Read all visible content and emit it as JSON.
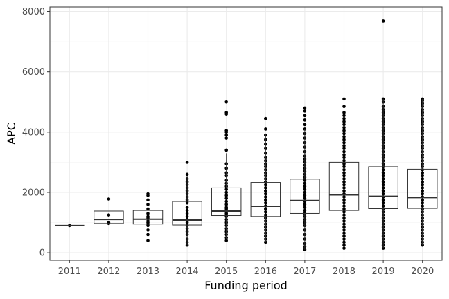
{
  "chart_data": {
    "type": "box",
    "xlabel": "Funding period",
    "ylabel": "APC",
    "categories": [
      "2011",
      "2012",
      "2013",
      "2014",
      "2015",
      "2016",
      "2017",
      "2018",
      "2019",
      "2020"
    ],
    "yticks": [
      0,
      2000,
      4000,
      6000,
      8000
    ],
    "ytick_labels": [
      "0",
      "2000",
      "4000",
      "6000",
      "8000"
    ],
    "ylim": [
      -250,
      8150
    ],
    "grid": true,
    "boxes": [
      {
        "category": "2011",
        "q1": 900,
        "median": 900,
        "q3": 900,
        "whisker_low": 900,
        "whisker_high": 900
      },
      {
        "category": "2012",
        "q1": 970,
        "median": 1100,
        "q3": 1380,
        "whisker_low": 970,
        "whisker_high": 1380
      },
      {
        "category": "2013",
        "q1": 950,
        "median": 1110,
        "q3": 1400,
        "whisker_low": 600,
        "whisker_high": 1950
      },
      {
        "category": "2014",
        "q1": 920,
        "median": 1080,
        "q3": 1700,
        "whisker_low": 250,
        "whisker_high": 2550
      },
      {
        "category": "2015",
        "q1": 1230,
        "median": 1380,
        "q3": 2150,
        "whisker_low": 450,
        "whisker_high": 3300
      },
      {
        "category": "2016",
        "q1": 1200,
        "median": 1540,
        "q3": 2330,
        "whisker_low": 350,
        "whisker_high": 3950
      },
      {
        "category": "2017",
        "q1": 1300,
        "median": 1730,
        "q3": 2440,
        "whisker_low": 100,
        "whisker_high": 4100
      },
      {
        "category": "2018",
        "q1": 1400,
        "median": 1920,
        "q3": 3000,
        "whisker_low": 150,
        "whisker_high": 5100
      },
      {
        "category": "2019",
        "q1": 1460,
        "median": 1870,
        "q3": 2850,
        "whisker_low": 150,
        "whisker_high": 5100
      },
      {
        "category": "2020",
        "q1": 1470,
        "median": 1830,
        "q3": 2770,
        "whisker_low": 250,
        "whisker_high": 5100
      }
    ],
    "points": [
      {
        "category": "2011",
        "y": [
          900
        ]
      },
      {
        "category": "2012",
        "y": [
          970,
          1000,
          1250,
          1780
        ]
      },
      {
        "category": "2013",
        "y": [
          400,
          600,
          750,
          900,
          950,
          1000,
          1050,
          1150,
          1200,
          1300,
          1450,
          1600,
          1750,
          1900,
          1950
        ]
      },
      {
        "category": "2014",
        "y": [
          250,
          350,
          450,
          600,
          700,
          800,
          900,
          1000,
          1050,
          1100,
          1200,
          1300,
          1400,
          1500,
          1650,
          1750,
          1850,
          1950,
          2050,
          2150,
          2250,
          2350,
          2450,
          2600,
          3000
        ]
      },
      {
        "category": "2015",
        "y": [
          400,
          500,
          600,
          700,
          800,
          900,
          1000,
          1100,
          1200,
          1250,
          1300,
          1350,
          1400,
          1450,
          1500,
          1600,
          1700,
          1800,
          1900,
          2000,
          2100,
          2200,
          2300,
          2400,
          2550,
          2650,
          2800,
          2950,
          3400,
          3800,
          3900,
          4000,
          4050,
          4600,
          4650,
          5000
        ]
      },
      {
        "category": "2016",
        "y": [
          350,
          450,
          550,
          650,
          750,
          850,
          950,
          1050,
          1150,
          1250,
          1350,
          1450,
          1550,
          1650,
          1750,
          1850,
          1950,
          2050,
          2150,
          2250,
          2350,
          2450,
          2550,
          2650,
          2750,
          2850,
          2950,
          3050,
          3150,
          3300,
          3450,
          3600,
          3750,
          3900,
          4100,
          4450
        ]
      },
      {
        "category": "2017",
        "y": [
          100,
          200,
          300,
          450,
          600,
          750,
          900,
          1000,
          1100,
          1200,
          1300,
          1400,
          1500,
          1600,
          1700,
          1800,
          1900,
          2000,
          2100,
          2200,
          2300,
          2400,
          2500,
          2600,
          2700,
          2800,
          2900,
          3000,
          3100,
          3200,
          3350,
          3500,
          3650,
          3800,
          3950,
          4100,
          4250,
          4400,
          4550,
          4700,
          4800
        ]
      },
      {
        "category": "2018",
        "y": [
          150,
          250,
          350,
          450,
          550,
          650,
          750,
          850,
          950,
          1050,
          1150,
          1250,
          1350,
          1450,
          1550,
          1650,
          1750,
          1850,
          1950,
          2050,
          2150,
          2250,
          2350,
          2450,
          2550,
          2650,
          2750,
          2850,
          2950,
          3050,
          3150,
          3250,
          3350,
          3450,
          3550,
          3650,
          3750,
          3850,
          3950,
          4050,
          4150,
          4250,
          4350,
          4450,
          4550,
          4650,
          4850,
          5100
        ]
      },
      {
        "category": "2019",
        "y": [
          150,
          250,
          350,
          450,
          550,
          650,
          750,
          850,
          950,
          1050,
          1150,
          1250,
          1350,
          1450,
          1550,
          1650,
          1750,
          1850,
          1950,
          2050,
          2150,
          2250,
          2350,
          2450,
          2550,
          2650,
          2750,
          2850,
          2950,
          3050,
          3150,
          3250,
          3350,
          3450,
          3550,
          3650,
          3750,
          3850,
          3950,
          4050,
          4150,
          4250,
          4350,
          4450,
          4550,
          4650,
          4750,
          4850,
          5000,
          5100,
          7680
        ]
      },
      {
        "category": "2020",
        "y": [
          250,
          350,
          450,
          550,
          650,
          750,
          850,
          950,
          1050,
          1150,
          1250,
          1350,
          1450,
          1550,
          1650,
          1750,
          1850,
          1950,
          2050,
          2150,
          2250,
          2350,
          2450,
          2550,
          2650,
          2750,
          2850,
          2950,
          3050,
          3150,
          3250,
          3350,
          3450,
          3550,
          3650,
          3750,
          3850,
          3950,
          4050,
          4150,
          4250,
          4350,
          4450,
          4550,
          4650,
          4750,
          4850,
          4950,
          5050,
          5100
        ]
      }
    ]
  }
}
